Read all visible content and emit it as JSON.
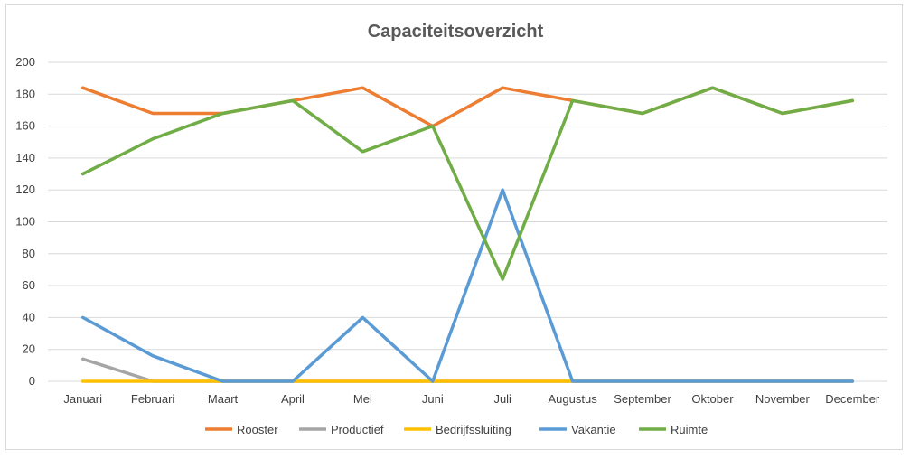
{
  "chart_data": {
    "type": "line",
    "title": "Capaciteitsoverzicht",
    "xlabel": "",
    "ylabel": "",
    "ylim": [
      0,
      200
    ],
    "yticks": [
      0,
      20,
      40,
      60,
      80,
      100,
      120,
      140,
      160,
      180,
      200
    ],
    "grid": true,
    "legend_position": "bottom",
    "categories": [
      "Januari",
      "Februari",
      "Maart",
      "April",
      "Mei",
      "Juni",
      "Juli",
      "Augustus",
      "September",
      "Oktober",
      "November",
      "December"
    ],
    "series": [
      {
        "name": "Rooster",
        "color": "#ed7d31",
        "values": [
          184,
          168,
          168,
          176,
          184,
          160,
          184,
          176,
          168,
          184,
          168,
          176
        ]
      },
      {
        "name": "Productief",
        "color": "#a5a5a5",
        "values": [
          14,
          0,
          0,
          0,
          0,
          0,
          0,
          0,
          0,
          0,
          0,
          0
        ]
      },
      {
        "name": "Bedrijfssluiting",
        "color": "#ffc000",
        "values": [
          0,
          0,
          0,
          0,
          0,
          0,
          0,
          0,
          0,
          0,
          0,
          0
        ]
      },
      {
        "name": "Vakantie",
        "color": "#5b9bd5",
        "values": [
          40,
          16,
          0,
          0,
          40,
          0,
          120,
          0,
          0,
          0,
          0,
          0
        ]
      },
      {
        "name": "Ruimte",
        "color": "#70ad47",
        "values": [
          130,
          152,
          168,
          176,
          144,
          160,
          64,
          176,
          168,
          184,
          168,
          176
        ]
      }
    ]
  }
}
